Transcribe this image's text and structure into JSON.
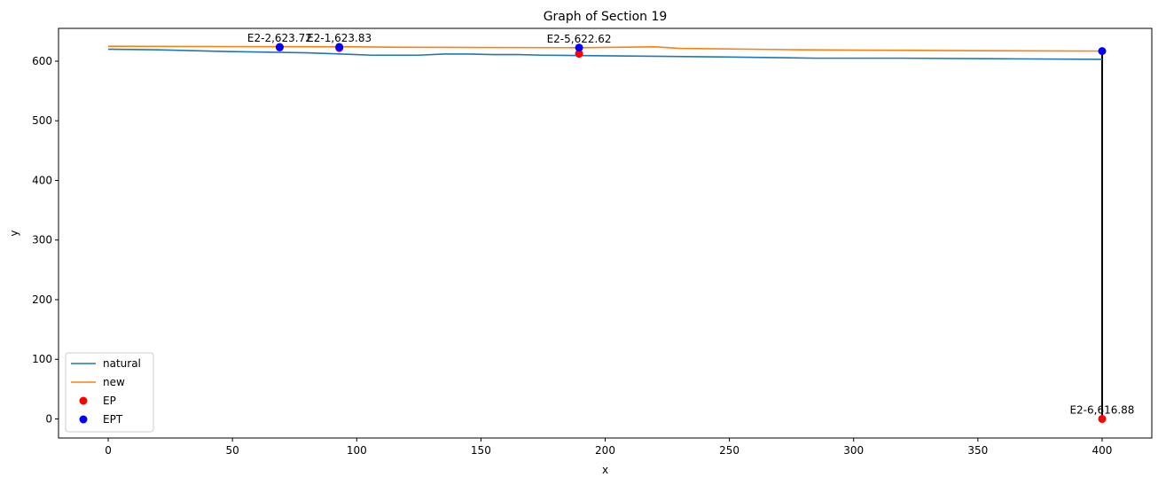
{
  "chart_data": {
    "type": "line",
    "title": "Graph of Section 19",
    "xlabel": "x",
    "ylabel": "y",
    "xlim": [
      -20,
      420
    ],
    "ylim": [
      -32,
      655
    ],
    "xticks": [
      0,
      50,
      100,
      150,
      200,
      250,
      300,
      350,
      400
    ],
    "yticks": [
      0,
      100,
      200,
      300,
      400,
      500,
      600
    ],
    "grid": false,
    "legend_position": "lower-left",
    "series": [
      {
        "name": "natural",
        "kind": "line",
        "color": "#1f77b4",
        "points": [
          [
            0,
            620
          ],
          [
            20,
            619
          ],
          [
            50,
            616
          ],
          [
            80,
            614
          ],
          [
            100,
            611
          ],
          [
            106,
            610
          ],
          [
            125,
            610
          ],
          [
            135,
            612
          ],
          [
            145,
            612
          ],
          [
            155,
            611
          ],
          [
            165,
            611
          ],
          [
            175,
            610
          ],
          [
            200,
            609
          ],
          [
            250,
            607
          ],
          [
            285,
            605
          ],
          [
            320,
            605
          ],
          [
            360,
            604
          ],
          [
            400,
            603
          ]
        ]
      },
      {
        "name": "new",
        "kind": "line",
        "color": "#ff7f0e",
        "points": [
          [
            0,
            625
          ],
          [
            50,
            624.5
          ],
          [
            100,
            624
          ],
          [
            118,
            623.3
          ],
          [
            150,
            623
          ],
          [
            190,
            622.6
          ],
          [
            220,
            624
          ],
          [
            230,
            621.5
          ],
          [
            280,
            619
          ],
          [
            340,
            617.8
          ],
          [
            400,
            616.9
          ]
        ]
      },
      {
        "name": "EP",
        "kind": "scatter",
        "color": "#ff0000",
        "points": [
          [
            69,
            623
          ],
          [
            93,
            622
          ],
          [
            189.5,
            612.5
          ],
          [
            400,
            0
          ]
        ]
      },
      {
        "name": "EPT",
        "kind": "scatter",
        "color": "#0000ff",
        "points": [
          [
            69,
            623.7
          ],
          [
            93,
            623.8
          ],
          [
            189.5,
            622.6
          ],
          [
            400,
            616.9
          ]
        ]
      }
    ],
    "vertical_lines": [
      {
        "x": 400,
        "y_from": 0,
        "y_to": 616.9,
        "color": "#000000"
      }
    ],
    "annotations": [
      {
        "text": "E2-2,623.72",
        "x": 69,
        "y": 623.7
      },
      {
        "text": "E2-1,623.83",
        "x": 93,
        "y": 623.8
      },
      {
        "text": "E2-5,622.62",
        "x": 189.5,
        "y": 622.6
      },
      {
        "text": "E2-6,616.88",
        "x": 400,
        "y": 0
      }
    ]
  }
}
